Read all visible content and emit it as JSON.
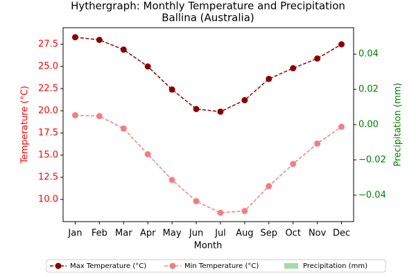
{
  "chart_data": {
    "type": "hythergraph",
    "title": "Hythergraph: Monthly Temperature and Precipitation",
    "subtitle": "Ballina (Australia)",
    "x_label": "Month",
    "y_label": "Temperature (°C)",
    "y2_label": "Precipitation (mm)",
    "categories": [
      "Jan",
      "Feb",
      "Mar",
      "Apr",
      "May",
      "Jun",
      "Jul",
      "Aug",
      "Sep",
      "Oct",
      "Nov",
      "Dec"
    ],
    "series": [
      {
        "name": "Max Temperature (°C)",
        "color": "#8b0000",
        "kind": "line",
        "values": [
          28.3,
          28.0,
          26.9,
          25.0,
          22.4,
          20.2,
          19.9,
          21.2,
          23.6,
          24.8,
          25.9,
          27.5
        ]
      },
      {
        "name": "Min Temperature (°C)",
        "color": "#f08080",
        "kind": "line",
        "values": [
          19.5,
          19.4,
          18.0,
          15.1,
          12.2,
          9.8,
          8.5,
          8.7,
          11.5,
          14.0,
          16.3,
          18.2
        ]
      },
      {
        "name": "Precipitation (mm)",
        "color": "#a8d8a8",
        "kind": "bar",
        "axis": "y2",
        "values": [
          0,
          0,
          0,
          0,
          0,
          0,
          0,
          0,
          0,
          0,
          0,
          0
        ]
      }
    ],
    "ylim": [
      7.5,
      29.375
    ],
    "yticks": [
      {
        "value": 10,
        "label": "10.0"
      },
      12.5,
      {
        "value": 15,
        "label": "15.0"
      },
      17.5,
      {
        "value": 20,
        "label": "20.0"
      },
      22.5,
      {
        "value": 25,
        "label": "25.0"
      },
      27.5
    ],
    "y2lim": [
      -0.055,
      0.055
    ],
    "y2ticks": [
      {
        "value": -0.04,
        "label": "−0.04"
      },
      {
        "value": -0.02,
        "label": "−0.02"
      },
      {
        "value": 0,
        "label": "0.00"
      },
      {
        "value": 0.02,
        "label": "0.02"
      },
      {
        "value": 0.04,
        "label": "0.04"
      }
    ],
    "y_color": "#ff0000",
    "y2_color": "#008000",
    "legend": "bottom"
  }
}
